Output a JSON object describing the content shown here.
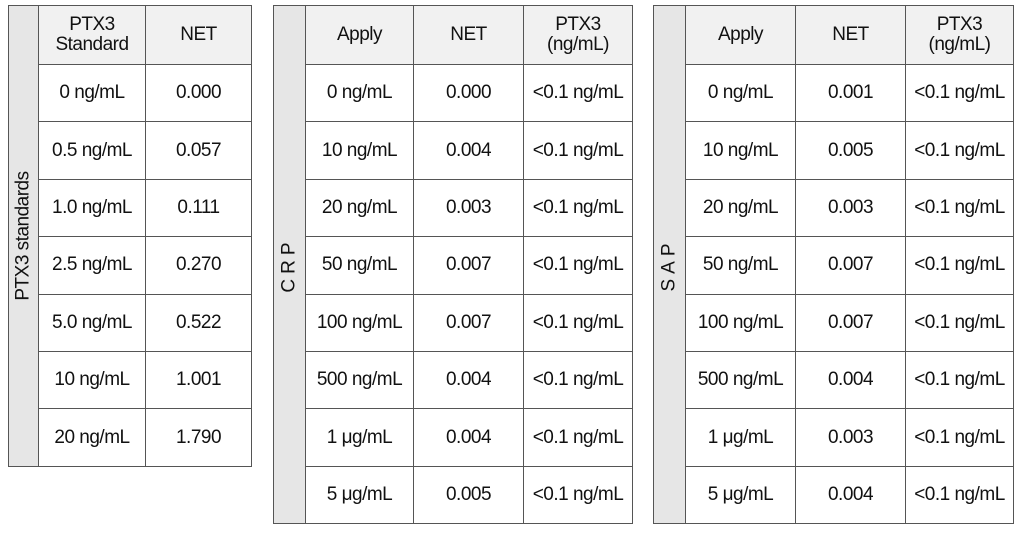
{
  "tables": [
    {
      "side_label": "PTX3 standards",
      "headers": [
        [
          "PTX3",
          "Standard"
        ],
        [
          "NET"
        ]
      ],
      "rows": [
        [
          "0 ng/mL",
          "0.000"
        ],
        [
          "0.5 ng/mL",
          "0.057"
        ],
        [
          "1.0 ng/mL",
          "0.111"
        ],
        [
          "2.5 ng/mL",
          "0.270"
        ],
        [
          "5.0 ng/mL",
          "0.522"
        ],
        [
          "10 ng/mL",
          "1.001"
        ],
        [
          "20 ng/mL",
          "1.790"
        ]
      ]
    },
    {
      "side_label": "CRP",
      "headers": [
        [
          "Apply"
        ],
        [
          "NET"
        ],
        [
          "PTX3",
          "(ng/mL)"
        ]
      ],
      "rows": [
        [
          "0 ng/mL",
          "0.000",
          "<0.1 ng/mL"
        ],
        [
          "10 ng/mL",
          "0.004",
          "<0.1 ng/mL"
        ],
        [
          "20 ng/mL",
          "0.003",
          "<0.1 ng/mL"
        ],
        [
          "50 ng/mL",
          "0.007",
          "<0.1 ng/mL"
        ],
        [
          "100 ng/mL",
          "0.007",
          "<0.1 ng/mL"
        ],
        [
          "500 ng/mL",
          "0.004",
          "<0.1 ng/mL"
        ],
        [
          "1 μg/mL",
          "0.004",
          "<0.1 ng/mL"
        ],
        [
          "5 μg/mL",
          "0.005",
          "<0.1 ng/mL"
        ]
      ]
    },
    {
      "side_label": "SAP",
      "headers": [
        [
          "Apply"
        ],
        [
          "NET"
        ],
        [
          "PTX3",
          "(ng/mL)"
        ]
      ],
      "rows": [
        [
          "0 ng/mL",
          "0.001",
          "<0.1 ng/mL"
        ],
        [
          "10 ng/mL",
          "0.005",
          "<0.1 ng/mL"
        ],
        [
          "20 ng/mL",
          "0.003",
          "<0.1 ng/mL"
        ],
        [
          "50 ng/mL",
          "0.007",
          "<0.1 ng/mL"
        ],
        [
          "100 ng/mL",
          "0.007",
          "<0.1 ng/mL"
        ],
        [
          "500 ng/mL",
          "0.004",
          "<0.1 ng/mL"
        ],
        [
          "1 μg/mL",
          "0.003",
          "<0.1 ng/mL"
        ],
        [
          "5 μg/mL",
          "0.004",
          "<0.1 ng/mL"
        ]
      ]
    }
  ]
}
